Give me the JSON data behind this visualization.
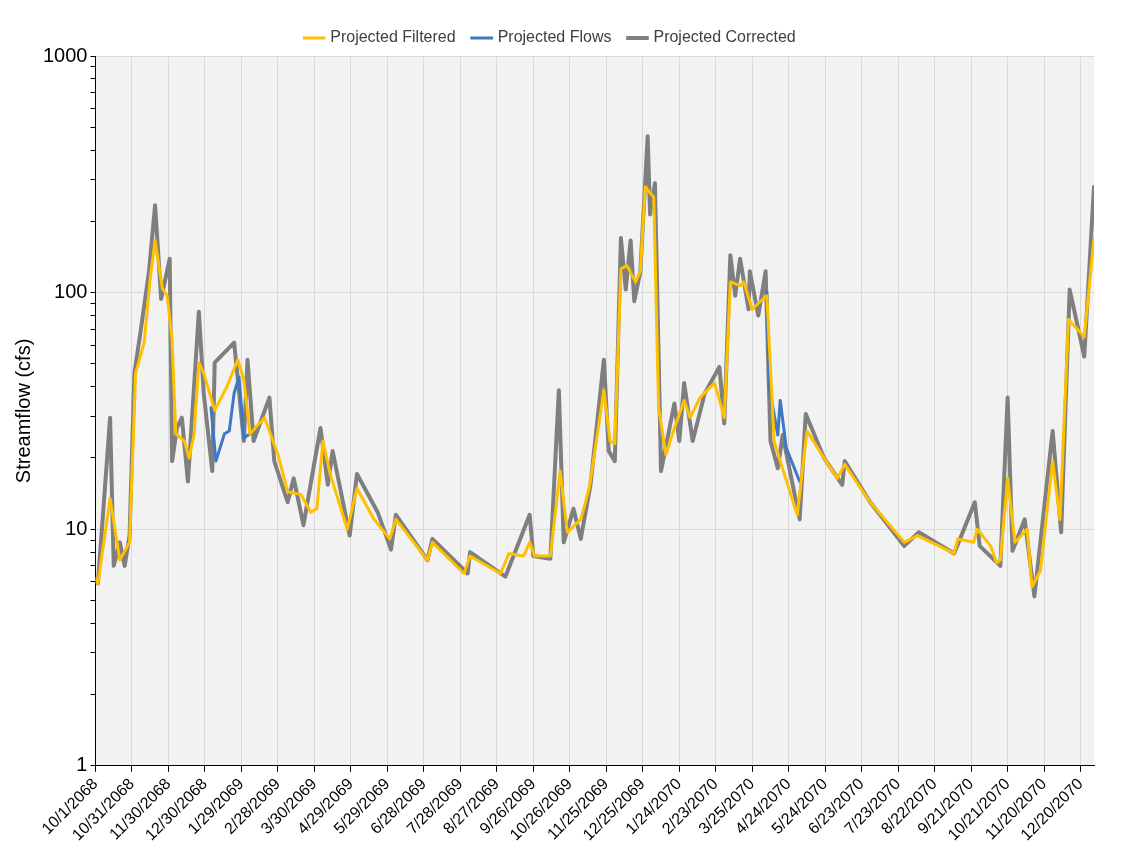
{
  "chart_data": {
    "type": "line",
    "ylabel": "Streamflow (cfs)",
    "log": "y",
    "grid": true,
    "legend": "top",
    "line_style": "solid",
    "marker": "none",
    "xlim": [
      "2068-10-01",
      "2070-12-31"
    ],
    "xticks": [
      {
        "value": "2068-10-01",
        "label": "10/1/2068"
      },
      {
        "value": "2068-10-31",
        "label": "10/31/2068"
      },
      {
        "value": "2068-11-30",
        "label": "11/30/2068"
      },
      {
        "value": "2068-12-30",
        "label": "12/30/2068"
      },
      {
        "value": "2069-01-29",
        "label": "1/29/2069"
      },
      {
        "value": "2069-02-28",
        "label": "2/28/2069"
      },
      {
        "value": "2069-03-30",
        "label": "3/30/2069"
      },
      {
        "value": "2069-04-29",
        "label": "4/29/2069"
      },
      {
        "value": "2069-05-29",
        "label": "5/29/2069"
      },
      {
        "value": "2069-06-28",
        "label": "6/28/2069"
      },
      {
        "value": "2069-07-28",
        "label": "7/28/2069"
      },
      {
        "value": "2069-08-27",
        "label": "8/27/2069"
      },
      {
        "value": "2069-09-26",
        "label": "9/26/2069"
      },
      {
        "value": "2069-10-26",
        "label": "10/26/2069"
      },
      {
        "value": "2069-11-25",
        "label": "11/25/2069"
      },
      {
        "value": "2069-12-25",
        "label": "12/25/2069"
      },
      {
        "value": "2070-01-24",
        "label": "1/24/2070"
      },
      {
        "value": "2070-02-23",
        "label": "2/23/2070"
      },
      {
        "value": "2070-03-25",
        "label": "3/25/2070"
      },
      {
        "value": "2070-04-24",
        "label": "4/24/2070"
      },
      {
        "value": "2070-05-24",
        "label": "5/24/2070"
      },
      {
        "value": "2070-06-23",
        "label": "6/23/2070"
      },
      {
        "value": "2070-07-23",
        "label": "7/23/2070"
      },
      {
        "value": "2070-08-22",
        "label": "8/22/2070"
      },
      {
        "value": "2070-09-21",
        "label": "9/21/2070"
      },
      {
        "value": "2070-10-21",
        "label": "10/21/2070"
      },
      {
        "value": "2070-11-20",
        "label": "11/20/2070"
      },
      {
        "value": "2070-12-20",
        "label": "12/20/2070"
      }
    ],
    "ylim": [
      1,
      1000
    ],
    "yticks": [
      1,
      {
        "value": 2,
        "label": null
      },
      {
        "value": 3,
        "label": null
      },
      {
        "value": 4,
        "label": null
      },
      {
        "value": 5,
        "label": null
      },
      {
        "value": 6,
        "label": null
      },
      {
        "value": 7,
        "label": null
      },
      {
        "value": 8,
        "label": null
      },
      {
        "value": 9,
        "label": null
      },
      10,
      {
        "value": 20,
        "label": null
      },
      {
        "value": 30,
        "label": null
      },
      {
        "value": 40,
        "label": null
      },
      {
        "value": 50,
        "label": null
      },
      {
        "value": 60,
        "label": null
      },
      {
        "value": 70,
        "label": null
      },
      {
        "value": 80,
        "label": null
      },
      {
        "value": 90,
        "label": null
      },
      100,
      {
        "value": 200,
        "label": null
      },
      {
        "value": 300,
        "label": null
      },
      {
        "value": 400,
        "label": null
      },
      {
        "value": 500,
        "label": null
      },
      {
        "value": 600,
        "label": null
      },
      {
        "value": 700,
        "label": null
      },
      {
        "value": 800,
        "label": null
      },
      {
        "value": 900,
        "label": null
      },
      1000
    ],
    "series": [
      {
        "name": "Projected Flows",
        "color": "#3d78c4",
        "x": [
          "2069-01-04",
          "2069-01-08",
          "2069-01-15",
          "2069-01-19",
          "2069-01-23",
          "2069-01-27",
          "2069-01-31",
          "2069-02-05",
          "2069-06-01",
          "2070-04-06",
          "2070-04-08",
          "2070-04-15",
          "2070-04-17",
          "2070-04-22",
          "2070-05-03"
        ],
        "values": [
          32.6,
          19.4,
          25.3,
          26,
          37.6,
          44,
          24.3,
          25.3,
          null,
          100,
          40,
          25,
          35,
          22,
          15.9
        ]
      },
      {
        "name": "Projected Corrected",
        "color": "#7f7f7f",
        "x": [
          "2068-10-01",
          "2068-10-03",
          "2068-10-13",
          "2068-10-16",
          "2068-10-21",
          "2068-10-25",
          "2068-10-29",
          "2068-11-02",
          "2068-11-07",
          "2068-11-14",
          "2068-11-19",
          "2068-11-24",
          "2068-12-01",
          "2068-12-03",
          "2068-12-07",
          "2068-12-11",
          "2068-12-16",
          "2068-12-25",
          "2068-12-29",
          "2069-01-05",
          "2069-01-07",
          "2069-01-23",
          "2069-01-31",
          "2069-02-03",
          "2069-02-08",
          "2069-02-21",
          "2069-02-25",
          "2069-03-08",
          "2069-03-13",
          "2069-03-21",
          "2069-04-04",
          "2069-04-10",
          "2069-04-14",
          "2069-04-28",
          "2069-05-04",
          "2069-05-21",
          "2069-06-01",
          "2069-06-05",
          "2069-07-01",
          "2069-07-05",
          "2069-08-03",
          "2069-08-05",
          "2069-09-03",
          "2069-09-23",
          "2069-09-26",
          "2069-10-10",
          "2069-10-17",
          "2069-10-21",
          "2069-10-29",
          "2069-11-04",
          "2069-11-12",
          "2069-11-23",
          "2069-11-27",
          "2069-12-02",
          "2069-12-07",
          "2069-12-11",
          "2069-12-15",
          "2069-12-18",
          "2069-12-23",
          "2069-12-29",
          "2069-12-31",
          "2070-01-04",
          "2070-01-09",
          "2070-01-20",
          "2070-01-24",
          "2070-01-28",
          "2070-02-04",
          "2070-02-14",
          "2070-02-26",
          "2070-03-02",
          "2070-03-07",
          "2070-03-11",
          "2070-03-15",
          "2070-03-22",
          "2070-03-23",
          "2070-03-30",
          "2070-04-05",
          "2070-04-09",
          "2070-04-15",
          "2070-04-19",
          "2070-05-03",
          "2070-05-08",
          "2070-05-23",
          "2070-06-07",
          "2070-06-09",
          "2070-06-30",
          "2070-07-28",
          "2070-08-09",
          "2070-09-07",
          "2070-09-24",
          "2070-09-28",
          "2070-10-15",
          "2070-10-21",
          "2070-10-25",
          "2070-11-04",
          "2070-11-12",
          "2070-11-27",
          "2070-12-04",
          "2070-12-11",
          "2070-12-23",
          "2070-12-31"
        ],
        "values": [
          6,
          5.9,
          29.6,
          7,
          8.8,
          7,
          9.4,
          45.7,
          68,
          123,
          234,
          94,
          139,
          19.4,
          26.8,
          29.6,
          15.9,
          83,
          37.6,
          17.6,
          50.6,
          61.5,
          23.6,
          52,
          23.6,
          36,
          19.4,
          13,
          16.4,
          10.4,
          26.8,
          15.4,
          21.4,
          9.4,
          17.1,
          11.8,
          8.2,
          11.5,
          7.4,
          9.1,
          6.5,
          8,
          6.3,
          11.5,
          7.7,
          7.5,
          38.7,
          8.8,
          12.2,
          9.1,
          15.4,
          52,
          21.4,
          19.4,
          170,
          103,
          166,
          92,
          123,
          458,
          214,
          290,
          17.6,
          34,
          23.6,
          41.5,
          23.6,
          37.6,
          48.5,
          28,
          144,
          97,
          139,
          85,
          123,
          80,
          123,
          23.6,
          18.1,
          25,
          11,
          30.7,
          20,
          15.4,
          19.4,
          13,
          8.5,
          9.7,
          7.9,
          13,
          8.5,
          7,
          36,
          8.1,
          11,
          5.2,
          26,
          9.7,
          103,
          53.7,
          280
        ]
      },
      {
        "name": "Projected Filtered",
        "color": "#ffc000",
        "x": [
          "2068-10-01",
          "2068-10-03",
          "2068-10-13",
          "2068-10-21",
          "2068-10-29",
          "2068-11-03",
          "2068-11-10",
          "2068-11-15",
          "2068-11-19",
          "2068-11-25",
          "2068-11-29",
          "2068-12-03",
          "2068-12-06",
          "2068-12-13",
          "2068-12-17",
          "2068-12-21",
          "2068-12-25",
          "2068-12-29",
          "2069-01-07",
          "2069-01-17",
          "2069-01-26",
          "2069-01-31",
          "2069-02-05",
          "2069-02-17",
          "2069-02-28",
          "2069-03-08",
          "2069-03-19",
          "2069-03-27",
          "2069-04-01",
          "2069-04-06",
          "2069-04-12",
          "2069-04-26",
          "2069-05-04",
          "2069-05-18",
          "2069-05-31",
          "2069-06-05",
          "2069-07-01",
          "2069-07-05",
          "2069-07-31",
          "2069-08-05",
          "2069-08-30",
          "2069-09-06",
          "2069-09-18",
          "2069-09-23",
          "2069-09-27",
          "2069-10-10",
          "2069-10-18",
          "2069-10-24",
          "2069-11-04",
          "2069-11-11",
          "2069-11-19",
          "2069-11-23",
          "2069-11-28",
          "2069-12-02",
          "2069-12-07",
          "2069-12-12",
          "2069-12-19",
          "2069-12-23",
          "2069-12-27",
          "2070-01-03",
          "2070-01-07",
          "2070-01-13",
          "2070-01-20",
          "2070-01-28",
          "2070-02-02",
          "2070-02-10",
          "2070-02-22",
          "2070-03-02",
          "2070-03-07",
          "2070-03-15",
          "2070-03-18",
          "2070-03-25",
          "2070-03-31",
          "2070-04-06",
          "2070-04-12",
          "2070-04-17",
          "2070-05-01",
          "2070-05-09",
          "2070-05-23",
          "2070-06-03",
          "2070-06-09",
          "2070-06-30",
          "2070-07-28",
          "2070-08-08",
          "2070-09-07",
          "2070-09-10",
          "2070-09-23",
          "2070-09-26",
          "2070-10-07",
          "2070-10-12",
          "2070-10-15",
          "2070-10-21",
          "2070-10-27",
          "2070-11-06",
          "2070-11-10",
          "2070-11-17",
          "2070-11-27",
          "2070-12-03",
          "2070-12-10",
          "2070-12-23",
          "2070-12-31"
        ],
        "values": [
          6.2,
          5.9,
          13.5,
          7.4,
          8.8,
          45.7,
          61.5,
          115,
          166,
          104,
          97,
          63,
          25.3,
          23.6,
          20,
          25,
          50.6,
          45.7,
          31.8,
          40,
          52,
          42.6,
          25.3,
          29.6,
          20.7,
          14.4,
          14,
          11.8,
          12.2,
          23.6,
          17.1,
          10,
          14.9,
          11,
          9.1,
          11,
          7.4,
          8.8,
          6.5,
          7.7,
          6.5,
          7.9,
          7.7,
          8.8,
          7.7,
          7.7,
          17.6,
          9.7,
          11,
          14.9,
          28,
          38.7,
          23.6,
          23,
          126,
          130,
          111,
          123,
          280,
          253,
          32.6,
          20.7,
          26.8,
          35,
          29.6,
          36,
          41.5,
          29.6,
          111,
          107,
          111,
          85,
          91,
          97,
          23.6,
          19.4,
          11.5,
          26,
          20,
          16.4,
          18.8,
          13,
          8.8,
          9.4,
          7.9,
          9.1,
          8.8,
          10,
          8.5,
          7.2,
          7.4,
          16.4,
          8.8,
          10,
          5.7,
          6.7,
          19.4,
          11,
          77,
          65,
          170
        ]
      }
    ]
  }
}
